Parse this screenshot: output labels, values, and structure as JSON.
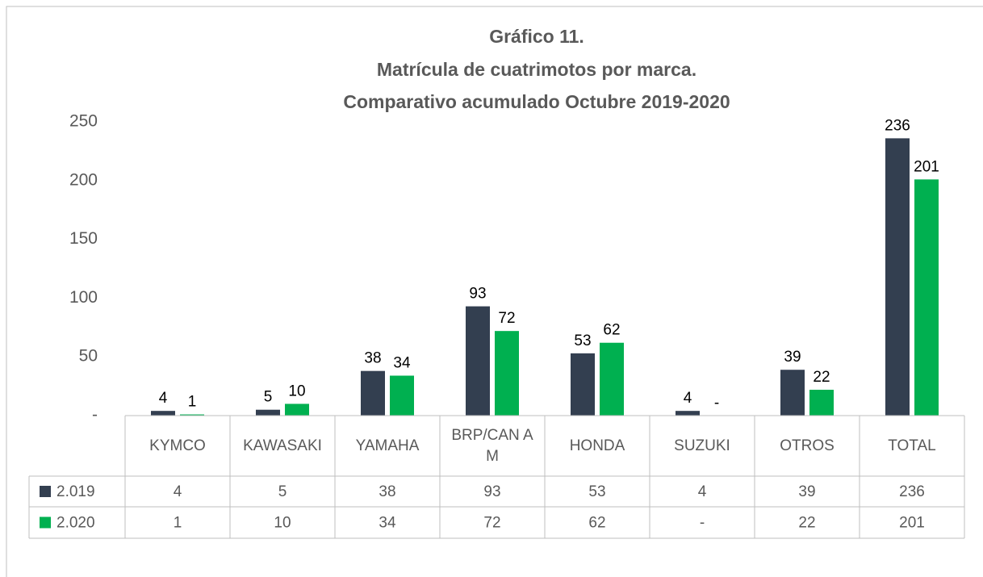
{
  "chart_data": {
    "type": "bar",
    "title": [
      "Gráfico 11.",
      "Matrícula de cuatrimotos por marca.",
      "Comparativo acumulado Octubre 2019-2020"
    ],
    "categories": [
      "KYMCO",
      "KAWASAKI",
      "YAMAHA",
      "BRP/CAN AM",
      "HONDA",
      "SUZUKI",
      "OTROS",
      "TOTAL"
    ],
    "series": [
      {
        "name": "2.019",
        "color": "#333f50",
        "values": [
          4,
          5,
          38,
          93,
          53,
          4,
          39,
          236
        ]
      },
      {
        "name": "2.020",
        "color": "#00b050",
        "values": [
          1,
          10,
          34,
          72,
          62,
          0,
          22,
          201
        ],
        "value_labels": [
          "1",
          "10",
          "34",
          "72",
          "62",
          "-",
          "22",
          "201"
        ]
      }
    ],
    "ylim": [
      0,
      250
    ],
    "yticks": [
      {
        "value": 0,
        "label": "-"
      },
      50,
      100,
      150,
      200,
      250
    ],
    "grid": false,
    "data_table": true
  }
}
